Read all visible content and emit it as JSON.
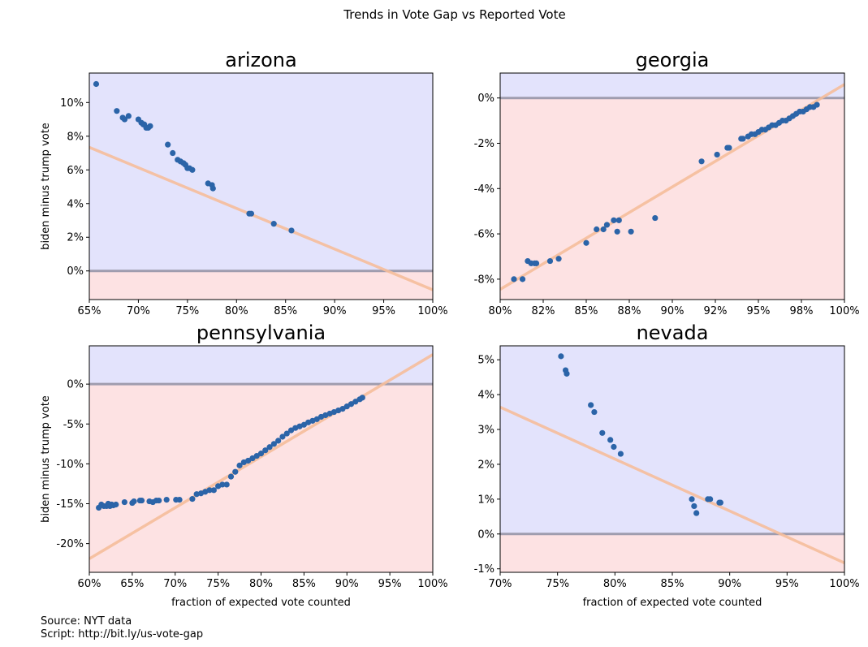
{
  "figure": {
    "suptitle": "Trends in Vote Gap vs Reported Vote",
    "source_line": "Source: NYT data",
    "script_line": "Script: http://bit.ly/us-vote-gap"
  },
  "colors": {
    "positive_bg": "#e3e3fc",
    "negative_bg": "#fde2e3",
    "zero_line": "#9f9cae",
    "fit_line": "#f6be9c",
    "points": "#2b64a8"
  },
  "chart_data": [
    {
      "type": "scatter",
      "title": "arizona",
      "xlabel": "",
      "ylabel": "biden minus trump vote",
      "xlim": [
        0.65,
        1.0
      ],
      "ylim": [
        -0.017,
        0.1175
      ],
      "xticks": [
        0.65,
        0.7,
        0.75,
        0.8,
        0.85,
        0.9,
        0.95,
        1.0
      ],
      "xtick_labels": [
        "65%",
        "70%",
        "75%",
        "80%",
        "85%",
        "90%",
        "95%",
        "100%"
      ],
      "yticks": [
        0.0,
        0.02,
        0.04,
        0.06,
        0.08,
        0.1
      ],
      "ytick_labels": [
        "0%",
        "2%",
        "4%",
        "6%",
        "8%",
        "10%"
      ],
      "fit_line": {
        "x": [
          0.65,
          1.0
        ],
        "y": [
          0.0734,
          -0.0112
        ]
      },
      "x": [
        0.657,
        0.678,
        0.684,
        0.686,
        0.69,
        0.7,
        0.703,
        0.705,
        0.706,
        0.708,
        0.71,
        0.712,
        0.73,
        0.735,
        0.74,
        0.743,
        0.746,
        0.748,
        0.75,
        0.752,
        0.755,
        0.771,
        0.775,
        0.776,
        0.813,
        0.815,
        0.838,
        0.856
      ],
      "y": [
        0.111,
        0.095,
        0.091,
        0.09,
        0.092,
        0.09,
        0.088,
        0.087,
        0.087,
        0.085,
        0.085,
        0.086,
        0.075,
        0.07,
        0.066,
        0.065,
        0.064,
        0.063,
        0.061,
        0.061,
        0.06,
        0.052,
        0.051,
        0.049,
        0.034,
        0.034,
        0.028,
        0.024
      ]
    },
    {
      "type": "scatter",
      "title": "georgia",
      "xlabel": "",
      "ylabel": "",
      "xlim": [
        0.8,
        1.0
      ],
      "ylim": [
        -0.089,
        0.011
      ],
      "xticks": [
        0.8,
        0.825,
        0.85,
        0.875,
        0.9,
        0.925,
        0.95,
        0.975,
        1.0
      ],
      "xtick_labels": [
        "80%",
        "82%",
        "85%",
        "88%",
        "90%",
        "92%",
        "95%",
        "98%",
        "100%"
      ],
      "yticks": [
        -0.08,
        -0.06,
        -0.04,
        -0.02,
        0.0
      ],
      "ytick_labels": [
        "-8%",
        "-6%",
        "-4%",
        "-2%",
        "0%"
      ],
      "fit_line": {
        "x": [
          0.8,
          1.0
        ],
        "y": [
          -0.0845,
          0.006
        ]
      },
      "x": [
        0.808,
        0.813,
        0.816,
        0.818,
        0.82,
        0.821,
        0.829,
        0.834,
        0.85,
        0.856,
        0.86,
        0.862,
        0.866,
        0.868,
        0.869,
        0.876,
        0.89,
        0.917,
        0.926,
        0.932,
        0.933,
        0.94,
        0.941,
        0.944,
        0.946,
        0.948,
        0.95,
        0.952,
        0.954,
        0.956,
        0.958,
        0.96,
        0.962,
        0.964,
        0.966,
        0.968,
        0.97,
        0.972,
        0.974,
        0.976,
        0.978,
        0.98,
        0.982,
        0.984
      ],
      "y": [
        -0.08,
        -0.08,
        -0.072,
        -0.073,
        -0.073,
        -0.073,
        -0.072,
        -0.071,
        -0.064,
        -0.058,
        -0.058,
        -0.056,
        -0.054,
        -0.059,
        -0.054,
        -0.059,
        -0.053,
        -0.028,
        -0.025,
        -0.022,
        -0.022,
        -0.018,
        -0.018,
        -0.017,
        -0.016,
        -0.016,
        -0.015,
        -0.014,
        -0.014,
        -0.013,
        -0.012,
        -0.012,
        -0.011,
        -0.01,
        -0.01,
        -0.009,
        -0.008,
        -0.007,
        -0.006,
        -0.006,
        -0.005,
        -0.004,
        -0.004,
        -0.003
      ]
    },
    {
      "type": "scatter",
      "title": "pennsylvania",
      "xlabel": "fraction of expected vote counted",
      "ylabel": "biden minus trump vote",
      "xlim": [
        0.6,
        1.0
      ],
      "ylim": [
        -0.236,
        0.048
      ],
      "xticks": [
        0.6,
        0.65,
        0.7,
        0.75,
        0.8,
        0.85,
        0.9,
        0.95,
        1.0
      ],
      "xtick_labels": [
        "60%",
        "65%",
        "70%",
        "75%",
        "80%",
        "85%",
        "90%",
        "95%",
        "100%"
      ],
      "yticks": [
        -0.2,
        -0.15,
        -0.1,
        -0.05,
        0.0
      ],
      "ytick_labels": [
        "-20%",
        "-15%",
        "-10%",
        "-5%",
        "0%"
      ],
      "fit_line": {
        "x": [
          0.6,
          1.0
        ],
        "y": [
          -0.219,
          0.037
        ]
      },
      "x": [
        0.611,
        0.614,
        0.617,
        0.62,
        0.622,
        0.624,
        0.626,
        0.628,
        0.631,
        0.641,
        0.65,
        0.652,
        0.659,
        0.661,
        0.67,
        0.674,
        0.678,
        0.681,
        0.69,
        0.701,
        0.705,
        0.72,
        0.725,
        0.73,
        0.735,
        0.74,
        0.745,
        0.75,
        0.755,
        0.76,
        0.765,
        0.77,
        0.775,
        0.78,
        0.785,
        0.79,
        0.795,
        0.8,
        0.805,
        0.81,
        0.815,
        0.82,
        0.825,
        0.83,
        0.835,
        0.84,
        0.845,
        0.85,
        0.855,
        0.86,
        0.865,
        0.87,
        0.875,
        0.88,
        0.885,
        0.89,
        0.895,
        0.9,
        0.905,
        0.91,
        0.915,
        0.918
      ],
      "y": [
        -0.155,
        -0.151,
        -0.153,
        -0.153,
        -0.15,
        -0.153,
        -0.151,
        -0.152,
        -0.151,
        -0.148,
        -0.149,
        -0.147,
        -0.146,
        -0.146,
        -0.147,
        -0.148,
        -0.146,
        -0.146,
        -0.145,
        -0.145,
        -0.145,
        -0.144,
        -0.138,
        -0.137,
        -0.135,
        -0.133,
        -0.133,
        -0.128,
        -0.126,
        -0.126,
        -0.116,
        -0.11,
        -0.102,
        -0.098,
        -0.096,
        -0.093,
        -0.09,
        -0.087,
        -0.083,
        -0.079,
        -0.075,
        -0.071,
        -0.066,
        -0.062,
        -0.058,
        -0.055,
        -0.053,
        -0.051,
        -0.048,
        -0.046,
        -0.044,
        -0.041,
        -0.039,
        -0.037,
        -0.035,
        -0.033,
        -0.031,
        -0.028,
        -0.025,
        -0.022,
        -0.019,
        -0.017
      ]
    },
    {
      "type": "scatter",
      "title": "nevada",
      "xlabel": "fraction of expected vote counted",
      "ylabel": "",
      "xlim": [
        0.7,
        1.0
      ],
      "ylim": [
        -0.011,
        0.054
      ],
      "xticks": [
        0.7,
        0.75,
        0.8,
        0.85,
        0.9,
        0.95,
        1.0
      ],
      "xtick_labels": [
        "70%",
        "75%",
        "80%",
        "85%",
        "90%",
        "95%",
        "100%"
      ],
      "yticks": [
        -0.01,
        0.0,
        0.01,
        0.02,
        0.03,
        0.04,
        0.05
      ],
      "ytick_labels": [
        "-1%",
        "0%",
        "1%",
        "2%",
        "3%",
        "4%",
        "5%"
      ],
      "fit_line": {
        "x": [
          0.7,
          1.0
        ],
        "y": [
          0.0364,
          -0.0083
        ]
      },
      "x": [
        0.753,
        0.757,
        0.758,
        0.779,
        0.782,
        0.789,
        0.796,
        0.799,
        0.805,
        0.867,
        0.869,
        0.871,
        0.881,
        0.883,
        0.891,
        0.892
      ],
      "y": [
        0.051,
        0.047,
        0.046,
        0.037,
        0.035,
        0.029,
        0.027,
        0.025,
        0.023,
        0.01,
        0.008,
        0.006,
        0.01,
        0.01,
        0.009,
        0.009
      ]
    }
  ]
}
